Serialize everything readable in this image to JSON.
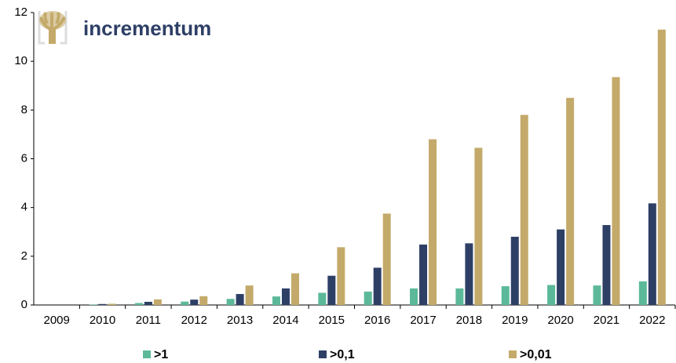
{
  "chart_data": {
    "type": "bar",
    "logo": "incrementum",
    "categories": [
      "2009",
      "2010",
      "2011",
      "2012",
      "2013",
      "2014",
      "2015",
      "2016",
      "2017",
      "2018",
      "2019",
      "2020",
      "2021",
      "2022"
    ],
    "series": [
      {
        "name": ">1",
        "color": "#5bb99a",
        "values": [
          0,
          0.02,
          0.08,
          0.14,
          0.25,
          0.35,
          0.5,
          0.55,
          0.68,
          0.68,
          0.77,
          0.82,
          0.8,
          0.97
        ]
      },
      {
        "name": ">0,1",
        "color": "#2e3f66",
        "values": [
          0,
          0.04,
          0.13,
          0.22,
          0.45,
          0.68,
          1.2,
          1.53,
          2.48,
          2.53,
          2.8,
          3.1,
          3.28,
          4.17
        ]
      },
      {
        "name": ">0,01",
        "color": "#c4aa6a",
        "values": [
          0,
          0.05,
          0.23,
          0.36,
          0.8,
          1.3,
          2.37,
          3.75,
          6.8,
          6.45,
          7.8,
          8.5,
          9.35,
          11.3
        ]
      }
    ],
    "ylim": [
      0,
      12
    ],
    "yticks": [
      0,
      2,
      4,
      6,
      8,
      10,
      12
    ],
    "grid": false,
    "legend": "bottom"
  }
}
